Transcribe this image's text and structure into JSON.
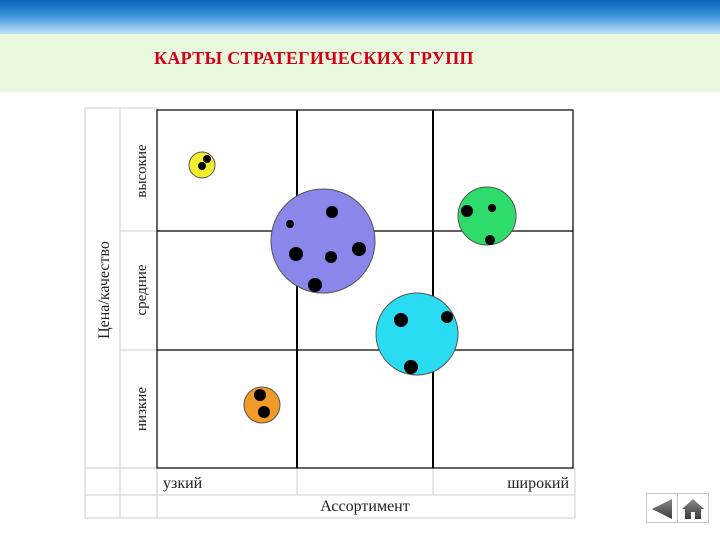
{
  "slide": {
    "title": "КАРТЫ СТРАТЕГИЧЕСКИХ ГРУПП"
  },
  "diagram": {
    "y_axis_title": "Цена/качество",
    "y_levels": [
      "высокие",
      "средние",
      "низкие"
    ],
    "x_axis_title": "Ассортимент",
    "x_ends": [
      "узкий",
      "широкий"
    ],
    "groups": [
      {
        "name": "group-yellow",
        "color": "#f2ee2e"
      },
      {
        "name": "group-blue",
        "color": "#8b86ea"
      },
      {
        "name": "group-green",
        "color": "#2edc6c"
      },
      {
        "name": "group-cyan",
        "color": "#29dcf2"
      },
      {
        "name": "group-orange",
        "color": "#f09a27"
      }
    ]
  },
  "nav": {
    "back_icon": "back-triangle-icon",
    "home_icon": "home-icon"
  }
}
